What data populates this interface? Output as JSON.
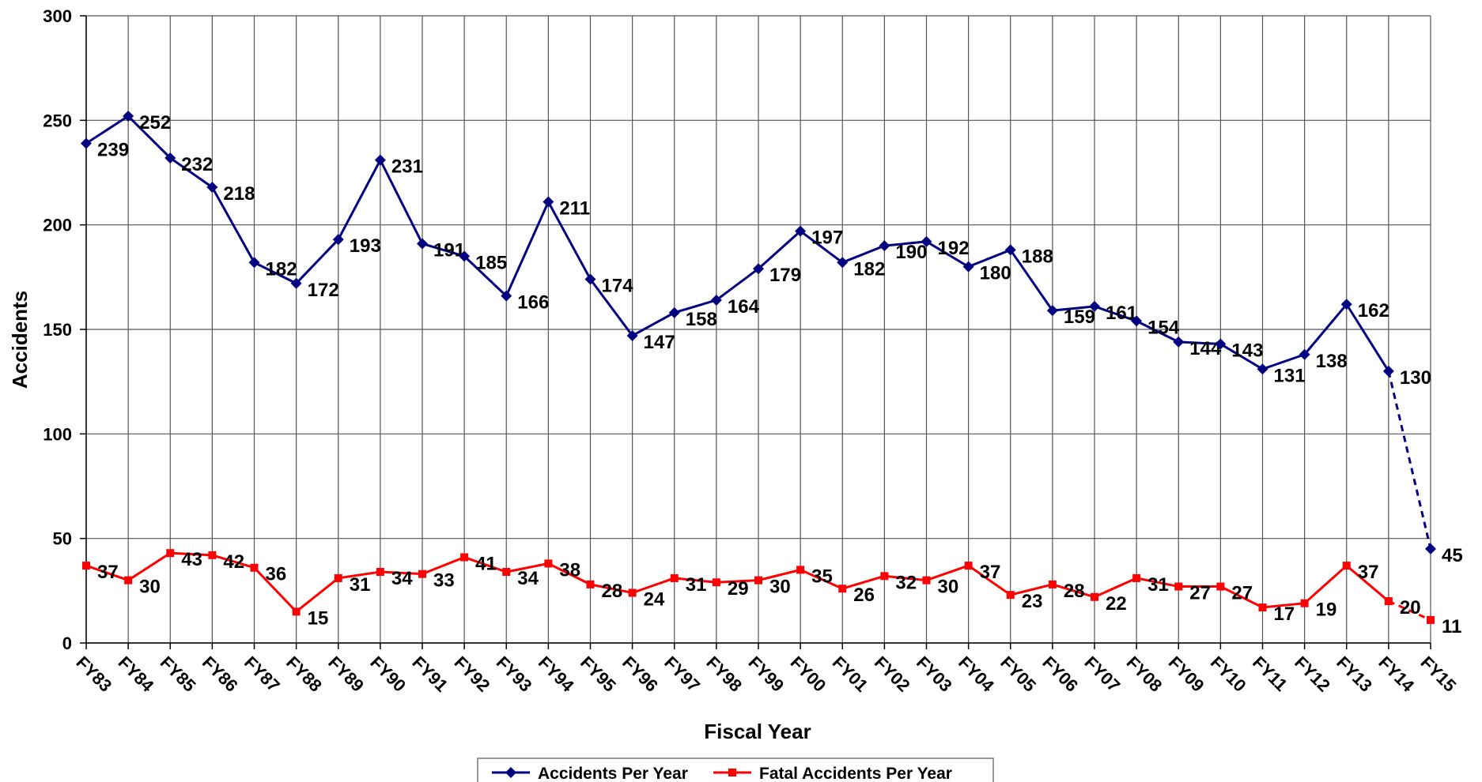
{
  "chart_data": {
    "type": "line",
    "x_label": "Fiscal Year",
    "y_label": "Accidents",
    "categories": [
      "FY83",
      "FY84",
      "FY85",
      "FY86",
      "FY87",
      "FY88",
      "FY89",
      "FY90",
      "FY91",
      "FY92",
      "FY93",
      "FY94",
      "FY95",
      "FY96",
      "FY97",
      "FY98",
      "FY99",
      "FY00",
      "FY01",
      "FY02",
      "FY03",
      "FY04",
      "FY05",
      "FY06",
      "FY07",
      "FY08",
      "FY09",
      "FY10",
      "FY11",
      "FY12",
      "FY13",
      "FY14",
      "FY15"
    ],
    "series": [
      {
        "name": "Accidents Per Year",
        "color": "#000080",
        "marker": "diamond",
        "values": [
          239,
          252,
          232,
          218,
          182,
          172,
          193,
          231,
          191,
          185,
          166,
          211,
          174,
          147,
          158,
          164,
          179,
          197,
          182,
          190,
          192,
          180,
          188,
          159,
          161,
          154,
          144,
          143,
          131,
          138,
          162,
          130,
          45
        ]
      },
      {
        "name": "Fatal Accidents Per Year",
        "color": "#ff0000",
        "marker": "square",
        "values": [
          37,
          30,
          43,
          42,
          36,
          15,
          31,
          34,
          33,
          41,
          34,
          38,
          28,
          24,
          31,
          29,
          30,
          35,
          26,
          32,
          30,
          37,
          23,
          28,
          22,
          31,
          27,
          27,
          17,
          19,
          37,
          20,
          11
        ]
      }
    ],
    "dashed_last_segment": true,
    "ylim": [
      0,
      300
    ],
    "yticks": [
      0,
      50,
      100,
      150,
      200,
      250,
      300
    ],
    "grid": true,
    "legend": "bottom"
  }
}
